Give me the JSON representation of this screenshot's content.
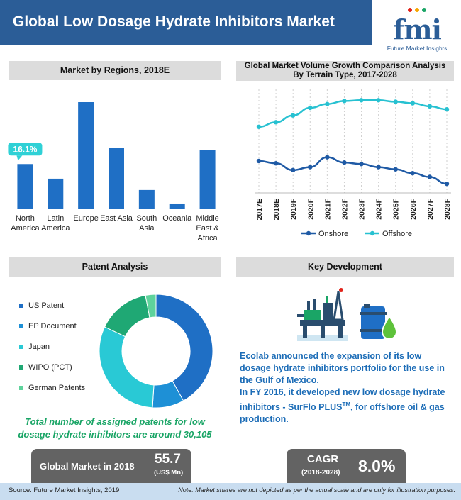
{
  "header": {
    "title": "Global Low Dosage Hydrate Inhibitors Market",
    "logo_text": "fmi",
    "logo_subtitle": "Future Market Insights"
  },
  "sections": {
    "regions": "Market by Regions, 2018E",
    "volume_title_line1": "Global Market Volume Growth Comparison Analysis",
    "volume_title_line2": "By Terrain Type, 2017-2028",
    "patent": "Patent Analysis",
    "key_dev": "Key Development"
  },
  "chart_data": [
    {
      "type": "bar",
      "title": "Market by Regions, 2018E",
      "categories": [
        "North America",
        "Latin America",
        "Europe",
        "East Asia",
        "South Asia",
        "Oceania",
        "Middle East & Africa"
      ],
      "category_lines": [
        [
          "North",
          "America"
        ],
        [
          "Latin",
          "America"
        ],
        [
          "Europe"
        ],
        [
          "East Asia"
        ],
        [
          "South",
          "Asia"
        ],
        [
          "Oceania"
        ],
        [
          "Middle",
          "East &",
          "Africa"
        ]
      ],
      "values": [
        16.1,
        10.8,
        38.5,
        21.9,
        6.7,
        1.8,
        21.3
      ],
      "callout": {
        "category": "North America",
        "label": "16.1%"
      },
      "bar_color": "#1f6fc5",
      "axis": "none"
    },
    {
      "type": "line",
      "title": "Global Market Volume Growth Comparison Analysis By Terrain Type, 2017-2028",
      "x": [
        "2017E",
        "2018E",
        "2019F",
        "2020F",
        "2021F",
        "2022F",
        "2023F",
        "2024F",
        "2025F",
        "2026F",
        "2027F",
        "2028F"
      ],
      "series": [
        {
          "name": "Onshore",
          "color": "#1f5aa5",
          "values": [
            42,
            39,
            30,
            34,
            47,
            40,
            38,
            34,
            31,
            26,
            21,
            12
          ]
        },
        {
          "name": "Offshore",
          "color": "#27c1d1",
          "values": [
            87,
            93,
            102,
            112,
            117,
            121,
            122,
            122,
            120,
            118,
            114,
            110
          ]
        }
      ],
      "ylim": [
        0,
        140
      ],
      "axis": "none",
      "legend": "bottom"
    },
    {
      "type": "pie",
      "title": "Patent Analysis",
      "donut": true,
      "labels": [
        "US Patent",
        "EP Document",
        "Japan",
        "WIPO (PCT)",
        "German Patents"
      ],
      "values": [
        42,
        9,
        31,
        15,
        3
      ],
      "colors": [
        "#1f6fc5",
        "#1e90d6",
        "#29c9d5",
        "#1fa874",
        "#5ed39c"
      ]
    }
  ],
  "patent": {
    "note_line1": "Total number of assigned patents for low",
    "note_line2": "dosage hydrate inhibitors are around 30,105"
  },
  "key_development": {
    "para1": "Ecolab announced the expansion of its low dosage hydrate inhibitors portfolio for the use in the Gulf of Mexico.",
    "para2_pre": "In FY 2016, it developed new low dosage hydrate inhibitors - SurFlo PLUS",
    "para2_tm": "TM",
    "para2_post": ", for offshore oil & gas production."
  },
  "stats": {
    "global_market_label": "Global Market in 2018",
    "global_market_value": "55.7",
    "global_market_unit": "(US$ Mn)",
    "cagr_label": "CAGR",
    "cagr_range": "(2018-2028)",
    "cagr_value": "8.0%"
  },
  "footer": {
    "source": "Source: Future Market Insights, 2019",
    "note": "Note: Market shares are not depicted as per the actual scale and are only for illustration purposes."
  },
  "colors": {
    "brand_blue": "#2b5d97",
    "section_gray": "#dcdcdc",
    "stat_gray": "#636363",
    "green_text": "#1aa566",
    "kd_blue": "#1d6db7",
    "footer_blue": "#c9ddf0"
  },
  "icons": [
    "oil-rig-icon",
    "chemical-barrel-icon"
  ]
}
